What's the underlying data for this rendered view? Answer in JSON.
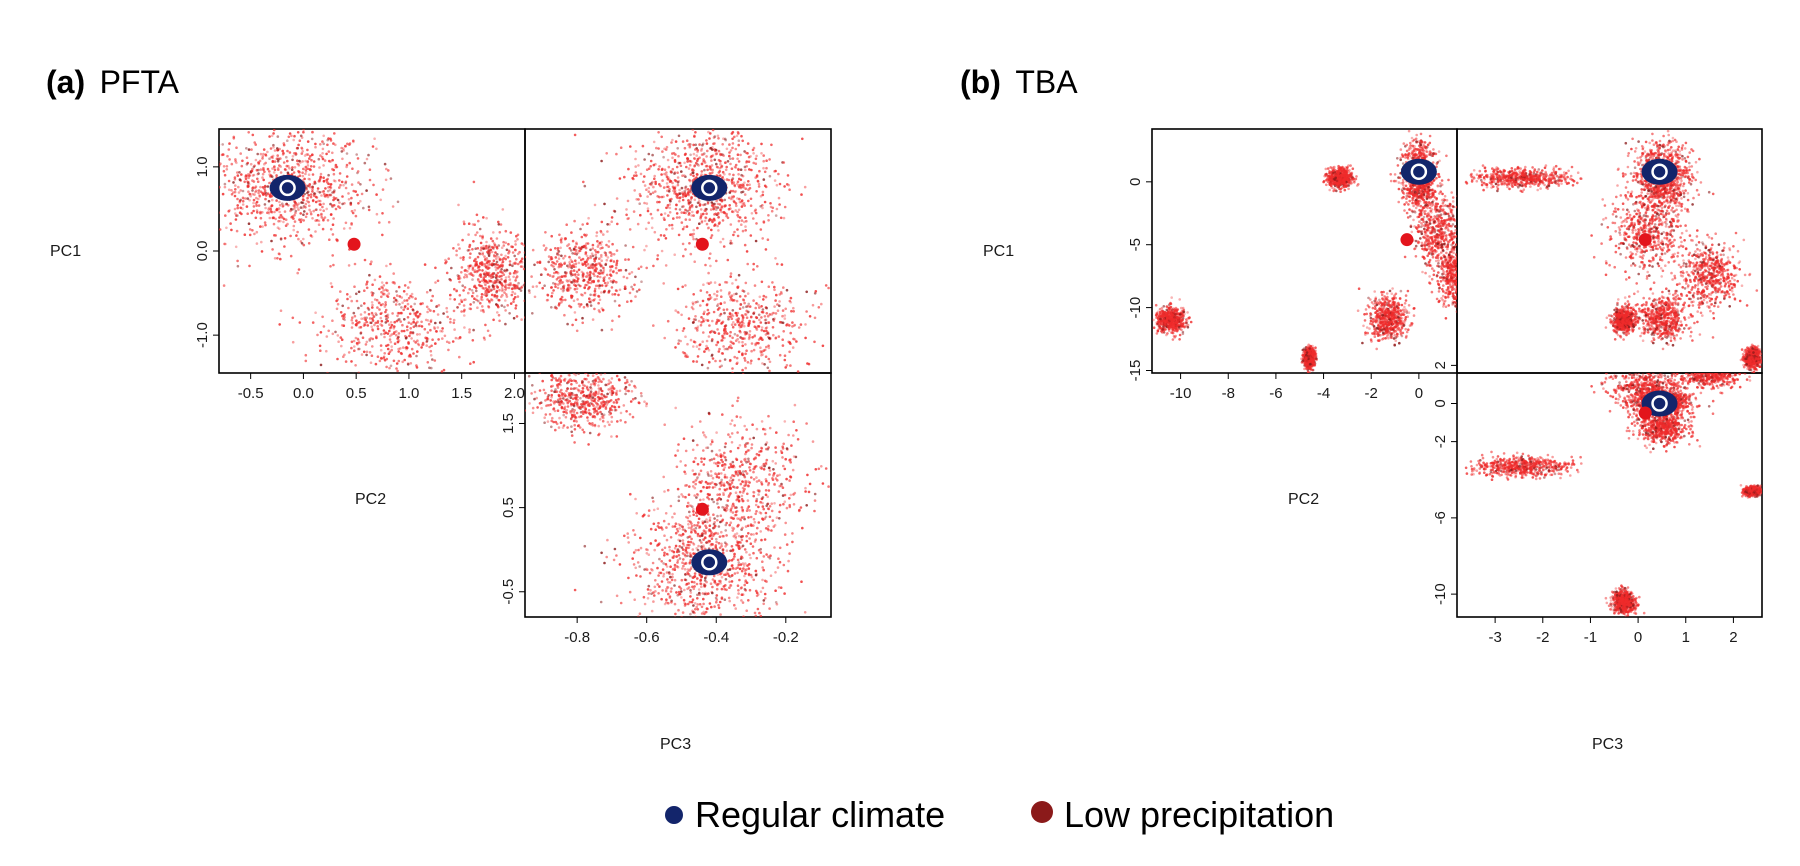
{
  "colors": {
    "regular": "#13256b",
    "low": "#e3141c",
    "low_dark": "#8b1a1a",
    "cloud": "#ef2b2b"
  },
  "panels": [
    {
      "id": "a",
      "tag": "(a)",
      "name": "PFTA"
    },
    {
      "id": "b",
      "tag": "(b)",
      "name": "TBA"
    }
  ],
  "legend": {
    "regular_label": "Regular climate",
    "low_label": "Low precipitation"
  },
  "chart_data": [
    {
      "panel": "a",
      "type": "scatter",
      "title": "(a) PFTA",
      "variables": [
        "PC1",
        "PC2",
        "PC3"
      ],
      "ranges": {
        "PC1": [
          -1.45,
          1.45
        ],
        "PC2": [
          -0.8,
          2.1
        ],
        "PC3": [
          -0.95,
          -0.07
        ]
      },
      "axis_ticks": {
        "PC1": [
          {
            "v": 1.0,
            "label": "1.0"
          },
          {
            "v": 0.0,
            "label": "0.0"
          },
          {
            "v": -1.0,
            "label": "-1.0"
          }
        ],
        "PC2_bottom": [
          {
            "v": -0.5,
            "label": "-0.5"
          },
          {
            "v": 0.0,
            "label": "0.0"
          },
          {
            "v": 0.5,
            "label": "0.5"
          },
          {
            "v": 1.0,
            "label": "1.0"
          },
          {
            "v": 1.5,
            "label": "1.5"
          },
          {
            "v": 2.0,
            "label": "2.0"
          }
        ],
        "PC2_left": [
          {
            "v": 1.5,
            "label": "1.5"
          },
          {
            "v": 0.5,
            "label": "0.5"
          },
          {
            "v": -0.5,
            "label": "-0.5"
          }
        ],
        "PC3": [
          {
            "v": -0.8,
            "label": "-0.8"
          },
          {
            "v": -0.6,
            "label": "-0.6"
          },
          {
            "v": -0.4,
            "label": "-0.4"
          },
          {
            "v": -0.2,
            "label": "-0.2"
          }
        ]
      },
      "clusters": [
        {
          "PC1": 0.75,
          "PC2": -0.15,
          "PC3": -0.43,
          "s1": 0.35,
          "s2": 0.4,
          "s3": 0.1
        },
        {
          "PC1": -0.9,
          "PC2": 0.85,
          "PC3": -0.33,
          "s1": 0.3,
          "s2": 0.35,
          "s3": 0.09
        },
        {
          "PC1": -0.25,
          "PC2": 1.78,
          "PC3": -0.78,
          "s1": 0.25,
          "s2": 0.18,
          "s3": 0.07
        }
      ],
      "regular_climate": {
        "PC1": 0.75,
        "PC2": -0.15,
        "PC3": -0.42
      },
      "low_precipitation": {
        "PC1": 0.08,
        "PC2": 0.48,
        "PC3": -0.44
      }
    },
    {
      "panel": "b",
      "type": "scatter",
      "title": "(b) TBA",
      "variables": [
        "PC1",
        "PC2",
        "PC3"
      ],
      "ranges": {
        "PC1": [
          -15.2,
          4.2
        ],
        "PC2": [
          -11.2,
          1.6
        ],
        "PC3": [
          -3.8,
          2.6
        ]
      },
      "axis_ticks": {
        "PC1": [
          {
            "v": 0,
            "label": "0"
          },
          {
            "v": -5,
            "label": "-5"
          },
          {
            "v": -10,
            "label": "-10"
          },
          {
            "v": -15,
            "label": "-15"
          }
        ],
        "PC2_bottom": [
          {
            "v": -10,
            "label": "-10"
          },
          {
            "v": -8,
            "label": "-8"
          },
          {
            "v": -6,
            "label": "-6"
          },
          {
            "v": -4,
            "label": "-4"
          },
          {
            "v": -2,
            "label": "-2"
          },
          {
            "v": 0,
            "label": "0"
          }
        ],
        "PC2_left": [
          {
            "v": 2,
            "label": "2"
          },
          {
            "v": 0,
            "label": "0"
          },
          {
            "v": -2,
            "label": "-2"
          },
          {
            "v": -6,
            "label": "-6"
          },
          {
            "v": -10,
            "label": "-10"
          }
        ],
        "PC3": [
          {
            "v": -3,
            "label": "-3"
          },
          {
            "v": -2,
            "label": "-2"
          },
          {
            "v": -1,
            "label": "-1"
          },
          {
            "v": 0,
            "label": "0"
          },
          {
            "v": 1,
            "label": "1"
          },
          {
            "v": 2,
            "label": "2"
          }
        ]
      },
      "clusters": [
        {
          "PC1": 0.5,
          "PC2": 0.0,
          "PC3": 0.5,
          "s1": 1.3,
          "s2": 0.35,
          "s3": 0.3
        },
        {
          "PC1": -4.0,
          "PC2": 0.8,
          "PC3": 0.2,
          "s1": 1.5,
          "s2": 0.5,
          "s3": 0.4
        },
        {
          "PC1": -7.5,
          "PC2": 1.6,
          "PC3": 1.5,
          "s1": 1.2,
          "s2": 0.35,
          "s3": 0.3
        },
        {
          "PC1": -10.8,
          "PC2": -1.3,
          "PC3": 0.5,
          "s1": 0.9,
          "s2": 0.4,
          "s3": 0.25
        },
        {
          "PC1": 0.3,
          "PC2": -3.3,
          "PC3": -2.4,
          "s1": 0.4,
          "s2": 0.25,
          "s3": 0.5
        },
        {
          "PC1": -11.0,
          "PC2": -10.4,
          "PC3": -0.3,
          "s1": 0.5,
          "s2": 0.3,
          "s3": 0.12
        },
        {
          "PC1": -14.0,
          "PC2": -4.6,
          "PC3": 2.4,
          "s1": 0.4,
          "s2": 0.12,
          "s3": 0.08
        }
      ],
      "regular_climate": {
        "PC1": 0.8,
        "PC2": 0.0,
        "PC3": 0.45
      },
      "low_precipitation": {
        "PC1": -4.6,
        "PC2": -0.5,
        "PC3": 0.15
      }
    }
  ]
}
